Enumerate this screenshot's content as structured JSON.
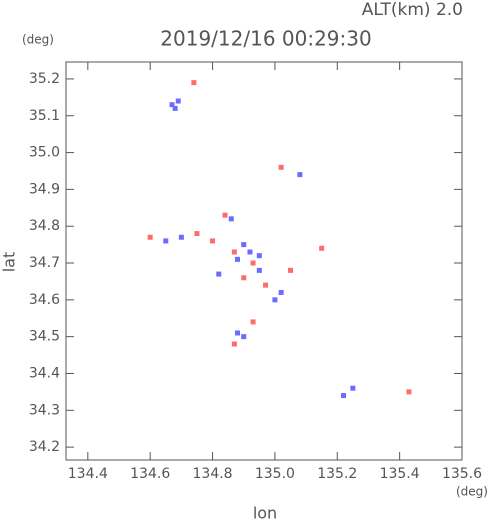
{
  "chart_data": {
    "type": "scatter",
    "title": "2019/12/16 00:29:30",
    "subtitle": "ALT(km) 2.0",
    "x_label": "lon",
    "y_label": "lat",
    "x_unit": "(deg)",
    "y_unit": "(deg)",
    "xlim": [
      134.33,
      135.6
    ],
    "ylim": [
      34.165,
      35.246
    ],
    "xticks": [
      134.4,
      134.6,
      134.8,
      {
        "value": 135.0,
        "label": "135.0"
      },
      135.2,
      135.4,
      135.6
    ],
    "yticks": [
      34.2,
      34.3,
      34.4,
      34.5,
      34.6,
      34.7,
      34.8,
      34.9,
      {
        "value": 35.0,
        "label": "35.0"
      },
      35.1,
      35.2
    ],
    "series": [
      {
        "color": "#6b6bff",
        "x": [
          134.67,
          134.69,
          134.68,
          135.08,
          134.86,
          134.9,
          134.92,
          134.88,
          134.95,
          135.02,
          135.0,
          134.9,
          134.88,
          135.22,
          135.25,
          134.65,
          134.7,
          134.95,
          134.82
        ],
        "values": [
          35.13,
          35.14,
          35.12,
          34.94,
          34.82,
          34.75,
          34.73,
          34.71,
          34.68,
          34.62,
          34.6,
          34.5,
          34.51,
          34.34,
          34.36,
          34.76,
          34.77,
          34.72,
          34.67
        ]
      },
      {
        "color": "#ff6b6b",
        "x": [
          134.74,
          135.02,
          134.84,
          134.6,
          134.8,
          134.87,
          134.93,
          135.05,
          134.97,
          134.93,
          134.87,
          135.43,
          135.15,
          134.75,
          134.9
        ],
        "values": [
          35.19,
          34.96,
          34.83,
          34.77,
          34.76,
          34.73,
          34.7,
          34.68,
          34.64,
          34.54,
          34.48,
          34.35,
          34.74,
          34.78,
          34.66
        ]
      }
    ]
  }
}
